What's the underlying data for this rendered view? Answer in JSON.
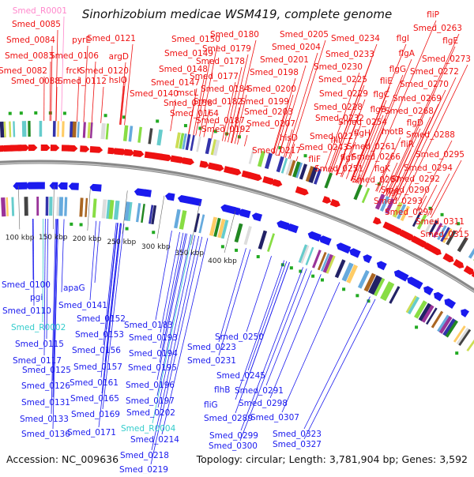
{
  "title": "Sinorhizobium medicae WSM419, complete genome",
  "accession": "Accession: NC_009636",
  "summary": "Topology: circular; Length: 3,781,904 bp; Genes: 3,592",
  "colors": {
    "forward": "#ee1111",
    "reverse": "#1a1aee",
    "rna": "#33cccc",
    "pseudo": "#ff88cc",
    "backbone": "#888888"
  },
  "ticks": [
    "100 kbp",
    "150 kbp",
    "200 kbp",
    "250 kbp",
    "300 kbp",
    "350 kbp",
    "400 kbp"
  ],
  "forward_labels": [
    {
      "text": "Smed_R0001",
      "kind": "pseudo"
    },
    {
      "text": "Smed_0085",
      "kind": "gene"
    },
    {
      "text": "Smed_0084",
      "kind": "gene"
    },
    {
      "text": "Smed_0083",
      "kind": "gene"
    },
    {
      "text": "Smed_0082",
      "kind": "gene"
    },
    {
      "text": "Smed_0088",
      "kind": "gene"
    },
    {
      "text": "pyrE",
      "kind": "gene"
    },
    {
      "text": "Smed_0106",
      "kind": "gene"
    },
    {
      "text": "frcK",
      "kind": "gene"
    },
    {
      "text": "Smed_0112",
      "kind": "gene"
    },
    {
      "text": "Smed_0121",
      "kind": "gene"
    },
    {
      "text": "argD",
      "kind": "gene"
    },
    {
      "text": "Smed_0120",
      "kind": "gene"
    },
    {
      "text": "hslO",
      "kind": "gene"
    },
    {
      "text": "Smed_0150",
      "kind": "gene"
    },
    {
      "text": "Smed_0149",
      "kind": "gene"
    },
    {
      "text": "Smed_0148",
      "kind": "gene"
    },
    {
      "text": "Smed_0147",
      "kind": "gene"
    },
    {
      "text": "Smed_0140",
      "kind": "gene"
    },
    {
      "text": "mscL",
      "kind": "gene"
    },
    {
      "text": "Smed_0158",
      "kind": "gene"
    },
    {
      "text": "Smed_0164",
      "kind": "gene"
    },
    {
      "text": "Smed_0180",
      "kind": "gene"
    },
    {
      "text": "Smed_0179",
      "kind": "gene"
    },
    {
      "text": "Smed_0178",
      "kind": "gene"
    },
    {
      "text": "Smed_0177",
      "kind": "gene"
    },
    {
      "text": "Smed_0184",
      "kind": "gene"
    },
    {
      "text": "Smed_0182",
      "kind": "gene"
    },
    {
      "text": "Smed_0187",
      "kind": "gene"
    },
    {
      "text": "Smed_0192",
      "kind": "gene"
    },
    {
      "text": "Smed_0205",
      "kind": "gene"
    },
    {
      "text": "Smed_0204",
      "kind": "gene"
    },
    {
      "text": "Smed_0201",
      "kind": "gene"
    },
    {
      "text": "Smed_0198",
      "kind": "gene"
    },
    {
      "text": "Smed_0200",
      "kind": "gene"
    },
    {
      "text": "Smed_0199",
      "kind": "gene"
    },
    {
      "text": "Smed_0203",
      "kind": "gene"
    },
    {
      "text": "Smed_0207",
      "kind": "gene"
    },
    {
      "text": "hisD",
      "kind": "gene"
    },
    {
      "text": "Smed_0217",
      "kind": "gene"
    },
    {
      "text": "Smed_0234",
      "kind": "gene"
    },
    {
      "text": "Smed_0233",
      "kind": "gene"
    },
    {
      "text": "Smed_0230",
      "kind": "gene"
    },
    {
      "text": "Smed_0225",
      "kind": "gene"
    },
    {
      "text": "Smed_0229",
      "kind": "gene"
    },
    {
      "text": "Smed_0228",
      "kind": "gene"
    },
    {
      "text": "Smed_0232",
      "kind": "gene"
    },
    {
      "text": "Smed_0227",
      "kind": "gene"
    },
    {
      "text": "Smed_0243",
      "kind": "gene"
    },
    {
      "text": "fliF",
      "kind": "gene"
    },
    {
      "text": "fliP",
      "kind": "gene"
    },
    {
      "text": "Smed_0263",
      "kind": "gene"
    },
    {
      "text": "flgI",
      "kind": "gene"
    },
    {
      "text": "flgE",
      "kind": "gene"
    },
    {
      "text": "flgA",
      "kind": "gene"
    },
    {
      "text": "flgG",
      "kind": "gene"
    },
    {
      "text": "fliE",
      "kind": "gene"
    },
    {
      "text": "flgC",
      "kind": "gene"
    },
    {
      "text": "flgB",
      "kind": "gene"
    },
    {
      "text": "Smed_0254",
      "kind": "gene"
    },
    {
      "text": "fliI",
      "kind": "gene"
    },
    {
      "text": "flgH",
      "kind": "gene"
    },
    {
      "text": "flgF",
      "kind": "gene"
    },
    {
      "text": "Smed_0251",
      "kind": "gene"
    },
    {
      "text": "motB",
      "kind": "gene"
    },
    {
      "text": "Smed_0261",
      "kind": "gene"
    },
    {
      "text": "Smed_0266",
      "kind": "gene"
    },
    {
      "text": "flgK",
      "kind": "gene"
    },
    {
      "text": "Smed_0267",
      "kind": "gene"
    },
    {
      "text": "flgL",
      "kind": "gene"
    },
    {
      "text": "Smed_0273",
      "kind": "gene"
    },
    {
      "text": "Smed_0272",
      "kind": "gene"
    },
    {
      "text": "Smed_0270",
      "kind": "gene"
    },
    {
      "text": "Smed_0269",
      "kind": "gene"
    },
    {
      "text": "Smed_0268",
      "kind": "gene"
    },
    {
      "text": "flgD",
      "kind": "gene"
    },
    {
      "text": "Smed_0288",
      "kind": "gene"
    },
    {
      "text": "fliR",
      "kind": "gene"
    },
    {
      "text": "Smed_0295",
      "kind": "gene"
    },
    {
      "text": "Smed_0294",
      "kind": "gene"
    },
    {
      "text": "Smed_0292",
      "kind": "gene"
    },
    {
      "text": "Smed_0290",
      "kind": "gene"
    },
    {
      "text": "Smed_0293",
      "kind": "gene"
    },
    {
      "text": "Smed_0297",
      "kind": "gene"
    },
    {
      "text": "Smed_0311",
      "kind": "gene"
    },
    {
      "text": "Smed_0315",
      "kind": "gene"
    }
  ],
  "reverse_labels": [
    {
      "text": "Smed_0100",
      "kind": "gene"
    },
    {
      "text": "pgi",
      "kind": "gene"
    },
    {
      "text": "Smed_0110",
      "kind": "gene"
    },
    {
      "text": "Smed_R0002",
      "kind": "rna"
    },
    {
      "text": "Smed_0115",
      "kind": "gene"
    },
    {
      "text": "Smed_0117",
      "kind": "gene"
    },
    {
      "text": "Smed_0125",
      "kind": "gene"
    },
    {
      "text": "Smed_0126",
      "kind": "gene"
    },
    {
      "text": "Smed_0131",
      "kind": "gene"
    },
    {
      "text": "Smed_0133",
      "kind": "gene"
    },
    {
      "text": "Smed_0136",
      "kind": "gene"
    },
    {
      "text": "apaG",
      "kind": "gene"
    },
    {
      "text": "Smed_0141",
      "kind": "gene"
    },
    {
      "text": "Smed_0152",
      "kind": "gene"
    },
    {
      "text": "Smed_0153",
      "kind": "gene"
    },
    {
      "text": "Smed_0156",
      "kind": "gene"
    },
    {
      "text": "Smed_0157",
      "kind": "gene"
    },
    {
      "text": "Smed_0161",
      "kind": "gene"
    },
    {
      "text": "Smed_0165",
      "kind": "gene"
    },
    {
      "text": "Smed_0169",
      "kind": "gene"
    },
    {
      "text": "Smed_0171",
      "kind": "gene"
    },
    {
      "text": "Smed_0183",
      "kind": "gene"
    },
    {
      "text": "Smed_0193",
      "kind": "gene"
    },
    {
      "text": "Smed_0194",
      "kind": "gene"
    },
    {
      "text": "Smed_0195",
      "kind": "gene"
    },
    {
      "text": "Smed_0196",
      "kind": "gene"
    },
    {
      "text": "Smed_0197",
      "kind": "gene"
    },
    {
      "text": "Smed_0202",
      "kind": "gene"
    },
    {
      "text": "Smed_R0004",
      "kind": "rna"
    },
    {
      "text": "Smed_0214",
      "kind": "gene"
    },
    {
      "text": "Smed_0218",
      "kind": "gene"
    },
    {
      "text": "Smed_0219",
      "kind": "gene"
    },
    {
      "text": "Smed_0223",
      "kind": "gene"
    },
    {
      "text": "Smed_0231",
      "kind": "gene"
    },
    {
      "text": "Smed_0250",
      "kind": "gene"
    },
    {
      "text": "Smed_0245",
      "kind": "gene"
    },
    {
      "text": "flhB",
      "kind": "gene"
    },
    {
      "text": "fliG",
      "kind": "gene"
    },
    {
      "text": "Smed_0291",
      "kind": "gene"
    },
    {
      "text": "Smed_0298",
      "kind": "gene"
    },
    {
      "text": "Smed_0289",
      "kind": "gene"
    },
    {
      "text": "Smed_0307",
      "kind": "gene"
    },
    {
      "text": "Smed_0299",
      "kind": "gene"
    },
    {
      "text": "Smed_0300",
      "kind": "gene"
    },
    {
      "text": "Smed_0323",
      "kind": "gene"
    },
    {
      "text": "Smed_0327",
      "kind": "gene"
    }
  ]
}
